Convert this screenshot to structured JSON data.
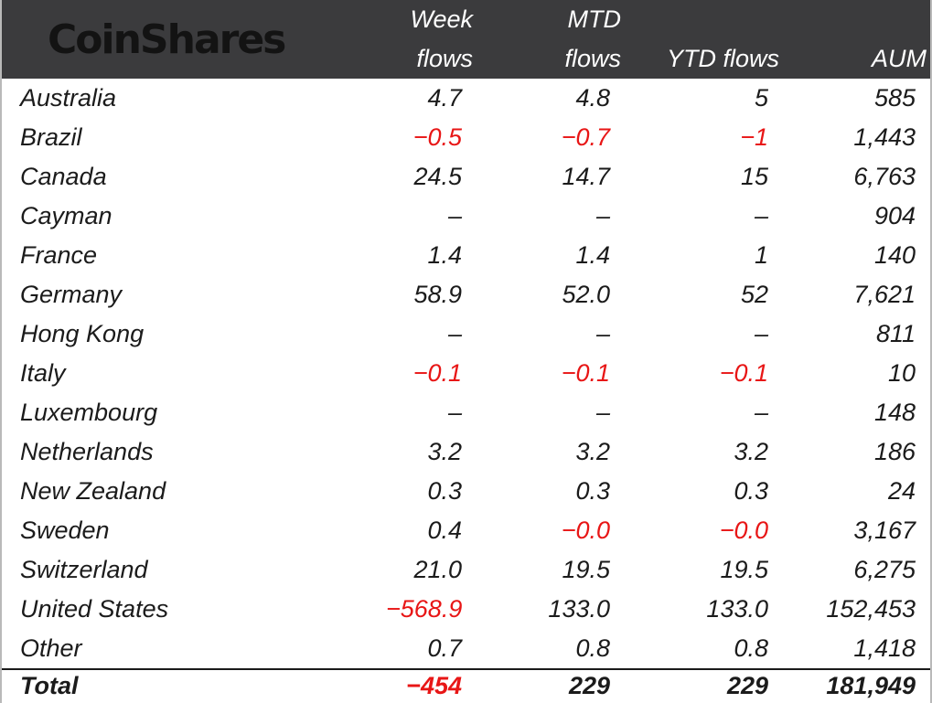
{
  "brand": {
    "logo_text": "CoinShares"
  },
  "colors": {
    "header_bg": "#3b3b3d",
    "negative": "#e81616",
    "text": "#1b1b1b",
    "edge_border": "#b9b9b9",
    "total_rule": "#1a1a1a",
    "header_text": "#ffffff",
    "logo_text": "#131313"
  },
  "chart_data": {
    "type": "table",
    "columns": [
      {
        "key": "week_flows",
        "line1": "Week",
        "line2": "flows"
      },
      {
        "key": "mtd_flows",
        "line1": "MTD",
        "line2": "flows"
      },
      {
        "key": "ytd_flows",
        "line1": "",
        "line2": "YTD flows"
      },
      {
        "key": "aum",
        "line1": "",
        "line2": "AUM"
      }
    ],
    "rows": [
      {
        "country": "Australia",
        "week_flows": "4.7",
        "mtd_flows": "4.8",
        "ytd_flows": "5",
        "aum": "585"
      },
      {
        "country": "Brazil",
        "week_flows": "−0.5",
        "mtd_flows": "−0.7",
        "ytd_flows": "−1",
        "aum": "1,443"
      },
      {
        "country": "Canada",
        "week_flows": "24.5",
        "mtd_flows": "14.7",
        "ytd_flows": "15",
        "aum": "6,763"
      },
      {
        "country": "Cayman",
        "week_flows": "–",
        "mtd_flows": "–",
        "ytd_flows": "–",
        "aum": "904"
      },
      {
        "country": "France",
        "week_flows": "1.4",
        "mtd_flows": "1.4",
        "ytd_flows": "1",
        "aum": "140"
      },
      {
        "country": "Germany",
        "week_flows": "58.9",
        "mtd_flows": "52.0",
        "ytd_flows": "52",
        "aum": "7,621"
      },
      {
        "country": "Hong Kong",
        "week_flows": "–",
        "mtd_flows": "–",
        "ytd_flows": "–",
        "aum": "811"
      },
      {
        "country": "Italy",
        "week_flows": "−0.1",
        "mtd_flows": "−0.1",
        "ytd_flows": "−0.1",
        "aum": "10"
      },
      {
        "country": "Luxembourg",
        "week_flows": "–",
        "mtd_flows": "–",
        "ytd_flows": "–",
        "aum": "148"
      },
      {
        "country": "Netherlands",
        "week_flows": "3.2",
        "mtd_flows": "3.2",
        "ytd_flows": "3.2",
        "aum": "186"
      },
      {
        "country": "New Zealand",
        "week_flows": "0.3",
        "mtd_flows": "0.3",
        "ytd_flows": "0.3",
        "aum": "24"
      },
      {
        "country": "Sweden",
        "week_flows": "0.4",
        "mtd_flows": "−0.0",
        "ytd_flows": "−0.0",
        "aum": "3,167"
      },
      {
        "country": "Switzerland",
        "week_flows": "21.0",
        "mtd_flows": "19.5",
        "ytd_flows": "19.5",
        "aum": "6,275"
      },
      {
        "country": "United States",
        "week_flows": "−568.9",
        "mtd_flows": "133.0",
        "ytd_flows": "133.0",
        "aum": "152,453"
      },
      {
        "country": "Other",
        "week_flows": "0.7",
        "mtd_flows": "0.8",
        "ytd_flows": "0.8",
        "aum": "1,418"
      }
    ],
    "total_row": {
      "country": "Total",
      "week_flows": "−454",
      "mtd_flows": "229",
      "ytd_flows": "229",
      "aum": "181,949"
    }
  }
}
